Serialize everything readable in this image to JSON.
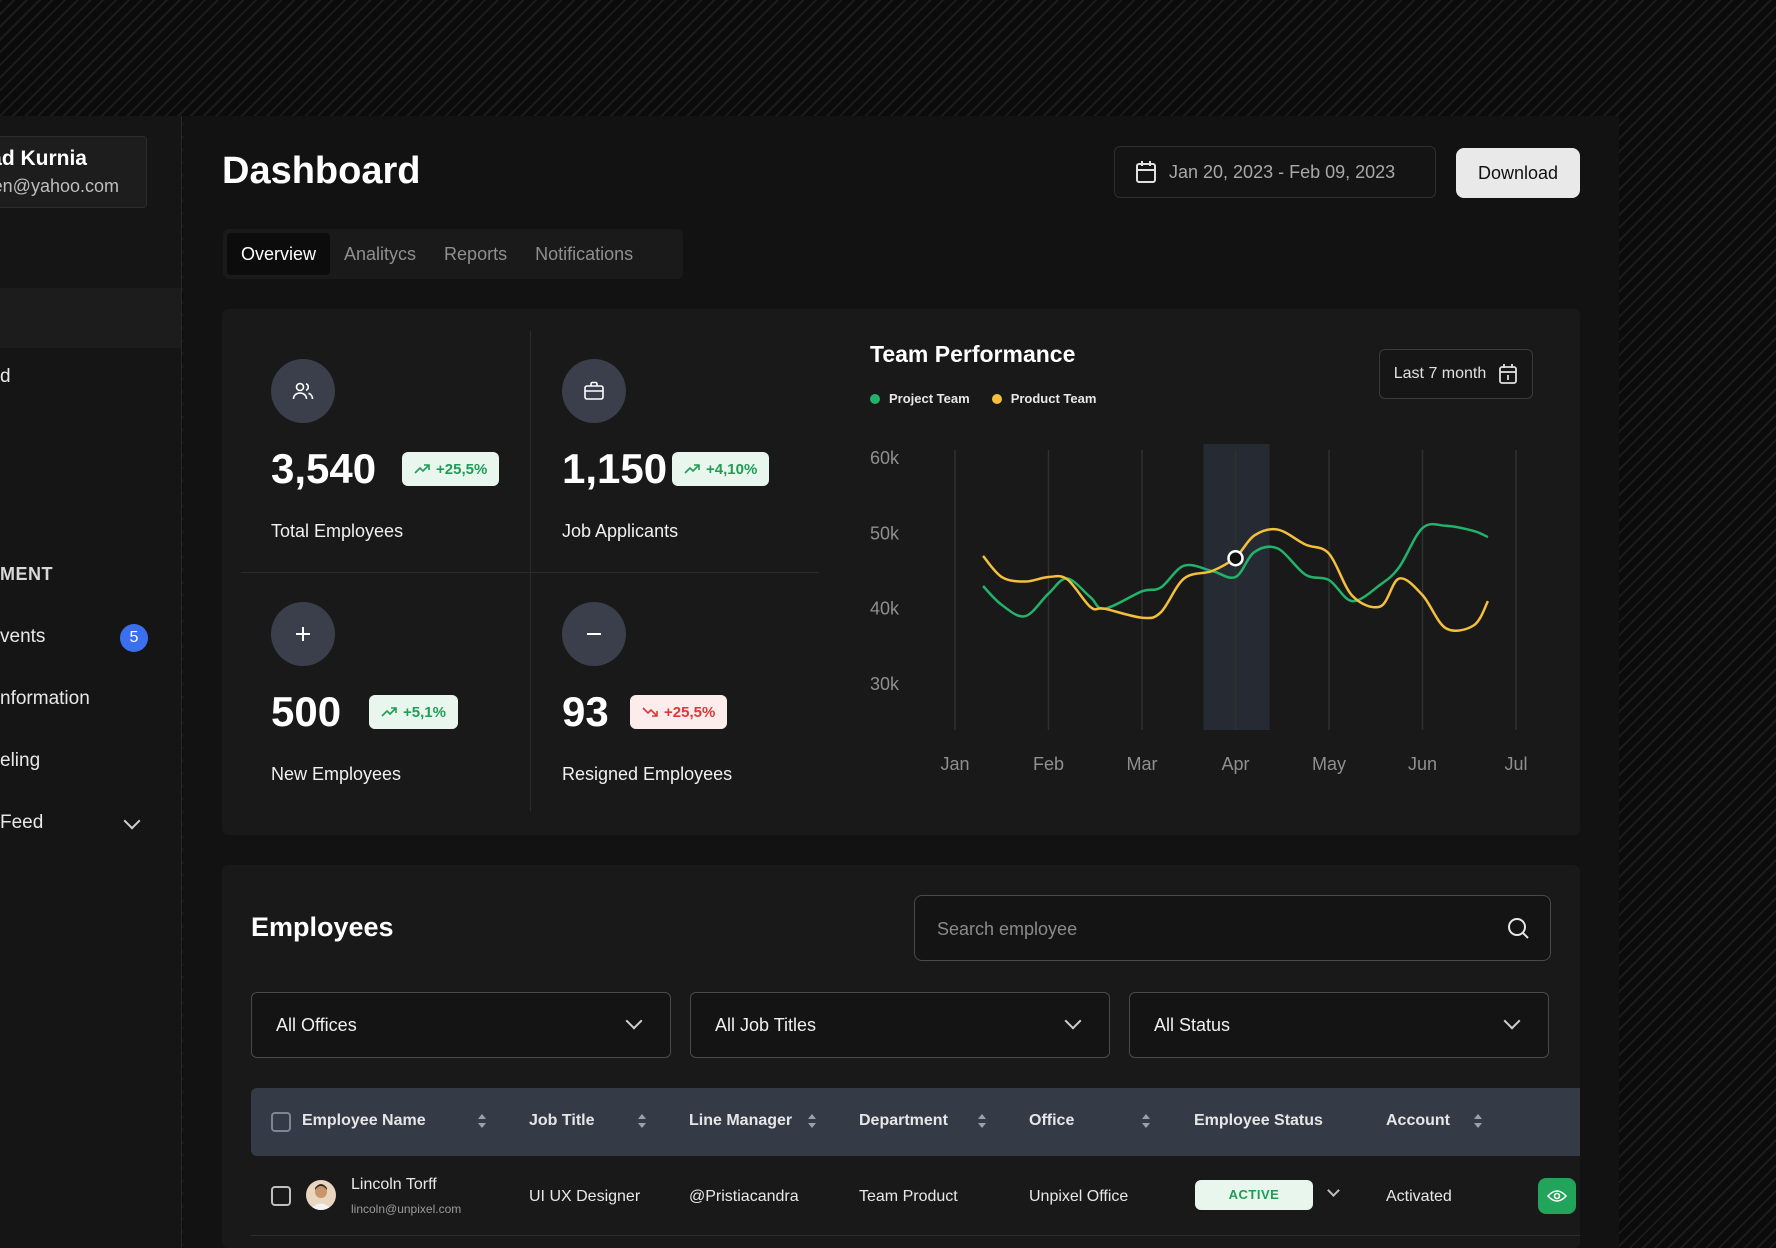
{
  "sidebar": {
    "user_name": "ad Kurnia",
    "user_email": "en@yahoo.com",
    "items": [
      {
        "label": "d"
      },
      {
        "label": "MENT"
      },
      {
        "label": "vents",
        "badge": "5"
      },
      {
        "label": "nformation"
      },
      {
        "label": "eling"
      },
      {
        "label": "Feed"
      }
    ]
  },
  "header": {
    "title": "Dashboard",
    "date_range": "Jan 20, 2023 - Feb 09, 2023",
    "download_label": "Download"
  },
  "tabs": [
    {
      "label": "Overview",
      "active": true
    },
    {
      "label": "Analitycs"
    },
    {
      "label": "Reports"
    },
    {
      "label": "Notifications"
    }
  ],
  "stats": [
    {
      "value": "3,540",
      "label": "Total  Employees",
      "change": "+25,5%",
      "trend": "up",
      "icon": "users-icon"
    },
    {
      "value": "1,150",
      "label": "Job Applicants",
      "change": "+4,10%",
      "trend": "up",
      "icon": "briefcase-icon"
    },
    {
      "value": "500",
      "label": "New  Employees",
      "change": "+5,1%",
      "trend": "up",
      "icon": "plus-icon"
    },
    {
      "value": "93",
      "label": "Resigned Employees",
      "change": "+25,5%",
      "trend": "down",
      "icon": "minus-icon"
    }
  ],
  "performance": {
    "title": "Team Performance",
    "period_label": "Last 7 month"
  },
  "chart_data": {
    "type": "line",
    "title": "Team Performance",
    "categories": [
      "Jan",
      "Feb",
      "Mar",
      "Apr",
      "May",
      "Jun",
      "Jul"
    ],
    "y_ticks": [
      "60k",
      "50k",
      "40k",
      "30k"
    ],
    "ylim": [
      30000,
      60000
    ],
    "highlight_category": "Apr",
    "legend_position": "top-left",
    "series": [
      {
        "name": "Project Team",
        "color": "#22b36a",
        "x": [
          0.3,
          0.5,
          0.75,
          1.0,
          1.2,
          1.45,
          1.6,
          2.0,
          2.2,
          2.45,
          2.75,
          3.0,
          3.2,
          3.45,
          3.75,
          4.0,
          4.25,
          4.55,
          4.75,
          5.0,
          5.25,
          5.55,
          5.7
        ],
        "values": [
          43000,
          40500,
          39000,
          42000,
          44000,
          41500,
          40000,
          42300,
          42800,
          45700,
          45000,
          44200,
          47500,
          48000,
          44500,
          43800,
          41000,
          43200,
          45500,
          50700,
          51000,
          50300,
          49500
        ]
      },
      {
        "name": "Product Team",
        "color": "#f4c03c",
        "x": [
          0.3,
          0.5,
          0.75,
          1.0,
          1.2,
          1.45,
          1.6,
          2.0,
          2.2,
          2.45,
          2.75,
          3.0,
          3.2,
          3.45,
          3.75,
          4.0,
          4.25,
          4.55,
          4.75,
          5.0,
          5.25,
          5.55,
          5.7
        ],
        "values": [
          47000,
          44200,
          43600,
          44200,
          43900,
          40200,
          40000,
          38800,
          39500,
          44000,
          45000,
          46800,
          49700,
          50500,
          48500,
          47300,
          41700,
          40300,
          44000,
          41800,
          37400,
          37800,
          41000
        ]
      }
    ]
  },
  "employees": {
    "title": "Employees",
    "search_placeholder": "Search employee",
    "filters": [
      "All Offices",
      "All Job Titles",
      "All Status"
    ],
    "columns": [
      "Employee Name",
      "Job Title",
      "Line Manager",
      "Department",
      "Office",
      "Employee Status",
      "Account"
    ],
    "rows": [
      {
        "name": "Lincoln Torff",
        "email": "lincoln@unpixel.com",
        "job_title": "UI UX Designer",
        "line_manager": "@Pristiacandra",
        "department": "Team Product",
        "office": "Unpixel Office",
        "status": "ACTIVE",
        "account": "Activated"
      }
    ]
  }
}
